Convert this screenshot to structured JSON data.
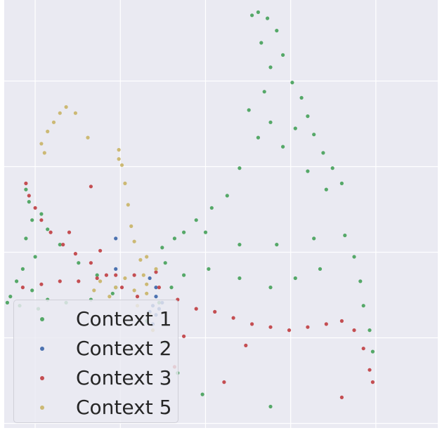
{
  "chart_data": {
    "type": "scatter",
    "title": "",
    "xlabel": "",
    "ylabel": "",
    "xlim": [
      -4,
      10
    ],
    "ylim": [
      -4,
      10
    ],
    "grid": true,
    "background": "#EAEAF2",
    "legend_position": "lower-left",
    "series": [
      {
        "name": "Context 1",
        "color": "#55A868",
        "points": [
          [
            4.0,
            9.5
          ],
          [
            4.2,
            9.6
          ],
          [
            4.5,
            9.4
          ],
          [
            4.8,
            9.0
          ],
          [
            4.3,
            8.6
          ],
          [
            5.0,
            8.2
          ],
          [
            4.6,
            7.8
          ],
          [
            5.3,
            7.3
          ],
          [
            5.6,
            6.8
          ],
          [
            4.4,
            7.0
          ],
          [
            5.8,
            6.2
          ],
          [
            6.0,
            5.6
          ],
          [
            6.3,
            5.0
          ],
          [
            6.6,
            4.5
          ],
          [
            6.9,
            4.0
          ],
          [
            5.4,
            5.8
          ],
          [
            4.6,
            6.0
          ],
          [
            5.0,
            5.2
          ],
          [
            5.8,
            4.4
          ],
          [
            6.4,
            3.8
          ],
          [
            3.9,
            6.4
          ],
          [
            4.2,
            5.5
          ],
          [
            3.6,
            4.5
          ],
          [
            3.2,
            3.6
          ],
          [
            2.7,
            3.2
          ],
          [
            2.2,
            2.8
          ],
          [
            1.8,
            2.4
          ],
          [
            2.5,
            2.4
          ],
          [
            3.6,
            2.0
          ],
          [
            4.8,
            2.0
          ],
          [
            6.0,
            2.2
          ],
          [
            7.0,
            2.3
          ],
          [
            7.3,
            1.6
          ],
          [
            7.5,
            0.8
          ],
          [
            7.6,
            0.0
          ],
          [
            7.8,
            -0.8
          ],
          [
            7.9,
            -1.5
          ],
          [
            6.2,
            1.2
          ],
          [
            5.4,
            0.9
          ],
          [
            4.6,
            0.6
          ],
          [
            3.6,
            0.9
          ],
          [
            2.6,
            1.2
          ],
          [
            1.8,
            1.0
          ],
          [
            1.4,
            0.6
          ],
          [
            1.2,
            1.4
          ],
          [
            1.1,
            1.9
          ],
          [
            1.5,
            2.2
          ],
          [
            -3.3,
            3.8
          ],
          [
            -3.2,
            3.4
          ],
          [
            -3.1,
            2.8
          ],
          [
            -3.3,
            2.2
          ],
          [
            -3.0,
            1.6
          ],
          [
            -3.4,
            1.2
          ],
          [
            -3.6,
            0.8
          ],
          [
            -3.8,
            0.3
          ],
          [
            -3.1,
            0.5
          ],
          [
            -2.6,
            0.2
          ],
          [
            -2.0,
            0.1
          ],
          [
            -1.2,
            0.2
          ],
          [
            -0.5,
            0.4
          ],
          [
            -2.8,
            3.0
          ],
          [
            -2.6,
            2.5
          ],
          [
            -2.2,
            2.0
          ],
          [
            -1.6,
            1.4
          ],
          [
            -1.0,
            1.0
          ],
          [
            -0.4,
            0.6
          ],
          [
            -3.9,
            0.1
          ],
          [
            -3.5,
            0.0
          ],
          [
            -2.9,
            -0.1
          ],
          [
            1.0,
            0.1
          ],
          [
            0.6,
            -0.5
          ],
          [
            1.2,
            -1.2
          ],
          [
            1.6,
            -2.2
          ],
          [
            2.4,
            -2.9
          ],
          [
            4.6,
            -3.3
          ]
        ]
      },
      {
        "name": "Context 2",
        "color": "#4C72B0",
        "points": [
          [
            0.8,
            0.0
          ],
          [
            0.9,
            -0.3
          ],
          [
            1.0,
            -0.1
          ],
          [
            0.9,
            0.3
          ],
          [
            1.1,
            0.1
          ],
          [
            0.8,
            -0.6
          ],
          [
            0.9,
            0.6
          ],
          [
            0.7,
            -0.2
          ],
          [
            -0.4,
            2.2
          ],
          [
            -0.4,
            1.2
          ],
          [
            0.7,
            0.9
          ]
        ]
      },
      {
        "name": "Context 3",
        "color": "#C44E52",
        "points": [
          [
            -3.3,
            4.0
          ],
          [
            -3.2,
            3.6
          ],
          [
            -3.0,
            3.2
          ],
          [
            -2.8,
            2.8
          ],
          [
            -2.5,
            2.4
          ],
          [
            -2.1,
            2.0
          ],
          [
            -1.7,
            1.7
          ],
          [
            -1.2,
            1.4
          ],
          [
            -0.7,
            1.0
          ],
          [
            -0.2,
            0.6
          ],
          [
            0.3,
            0.3
          ],
          [
            -3.4,
            0.6
          ],
          [
            -2.8,
            0.7
          ],
          [
            -2.2,
            0.8
          ],
          [
            -1.6,
            0.8
          ],
          [
            -1.0,
            0.9
          ],
          [
            -0.4,
            1.0
          ],
          [
            0.2,
            1.0
          ],
          [
            1.0,
            0.6
          ],
          [
            1.6,
            0.2
          ],
          [
            2.2,
            -0.1
          ],
          [
            2.8,
            -0.2
          ],
          [
            3.4,
            -0.4
          ],
          [
            4.0,
            -0.6
          ],
          [
            4.6,
            -0.7
          ],
          [
            5.2,
            -0.8
          ],
          [
            5.8,
            -0.7
          ],
          [
            6.4,
            -0.6
          ],
          [
            6.9,
            -0.5
          ],
          [
            7.3,
            -0.8
          ],
          [
            7.6,
            -1.4
          ],
          [
            7.8,
            -2.1
          ],
          [
            7.9,
            -2.5
          ],
          [
            -0.9,
            1.8
          ],
          [
            -1.9,
            2.4
          ],
          [
            1.8,
            -1.0
          ],
          [
            3.8,
            -1.3
          ],
          [
            1.5,
            -2.0
          ],
          [
            3.1,
            -2.5
          ],
          [
            6.9,
            -3.0
          ],
          [
            -1.2,
            3.9
          ],
          [
            0.9,
            1.1
          ]
        ]
      },
      {
        "name": "Context 5",
        "color": "#CCB974",
        "points": [
          [
            -2.8,
            5.3
          ],
          [
            -2.6,
            5.7
          ],
          [
            -2.4,
            6.0
          ],
          [
            -2.2,
            6.3
          ],
          [
            -2.0,
            6.5
          ],
          [
            -1.7,
            6.3
          ],
          [
            -1.3,
            5.5
          ],
          [
            -0.3,
            5.1
          ],
          [
            -0.2,
            4.6
          ],
          [
            -0.1,
            4.0
          ],
          [
            0.0,
            3.3
          ],
          [
            0.1,
            2.6
          ],
          [
            0.2,
            2.1
          ],
          [
            0.4,
            1.5
          ],
          [
            0.5,
            1.0
          ],
          [
            0.6,
            0.4
          ],
          [
            0.7,
            -0.3
          ],
          [
            0.8,
            -0.8
          ],
          [
            0.6,
            0.7
          ],
          [
            0.2,
            0.5
          ],
          [
            -0.4,
            0.6
          ],
          [
            -0.9,
            0.8
          ],
          [
            -0.6,
            0.3
          ],
          [
            0.3,
            0.0
          ],
          [
            0.9,
            1.2
          ],
          [
            0.6,
            1.6
          ],
          [
            -0.1,
            0.9
          ],
          [
            -1.1,
            0.5
          ],
          [
            -2.7,
            5.0
          ],
          [
            -0.3,
            4.8
          ]
        ]
      }
    ]
  }
}
